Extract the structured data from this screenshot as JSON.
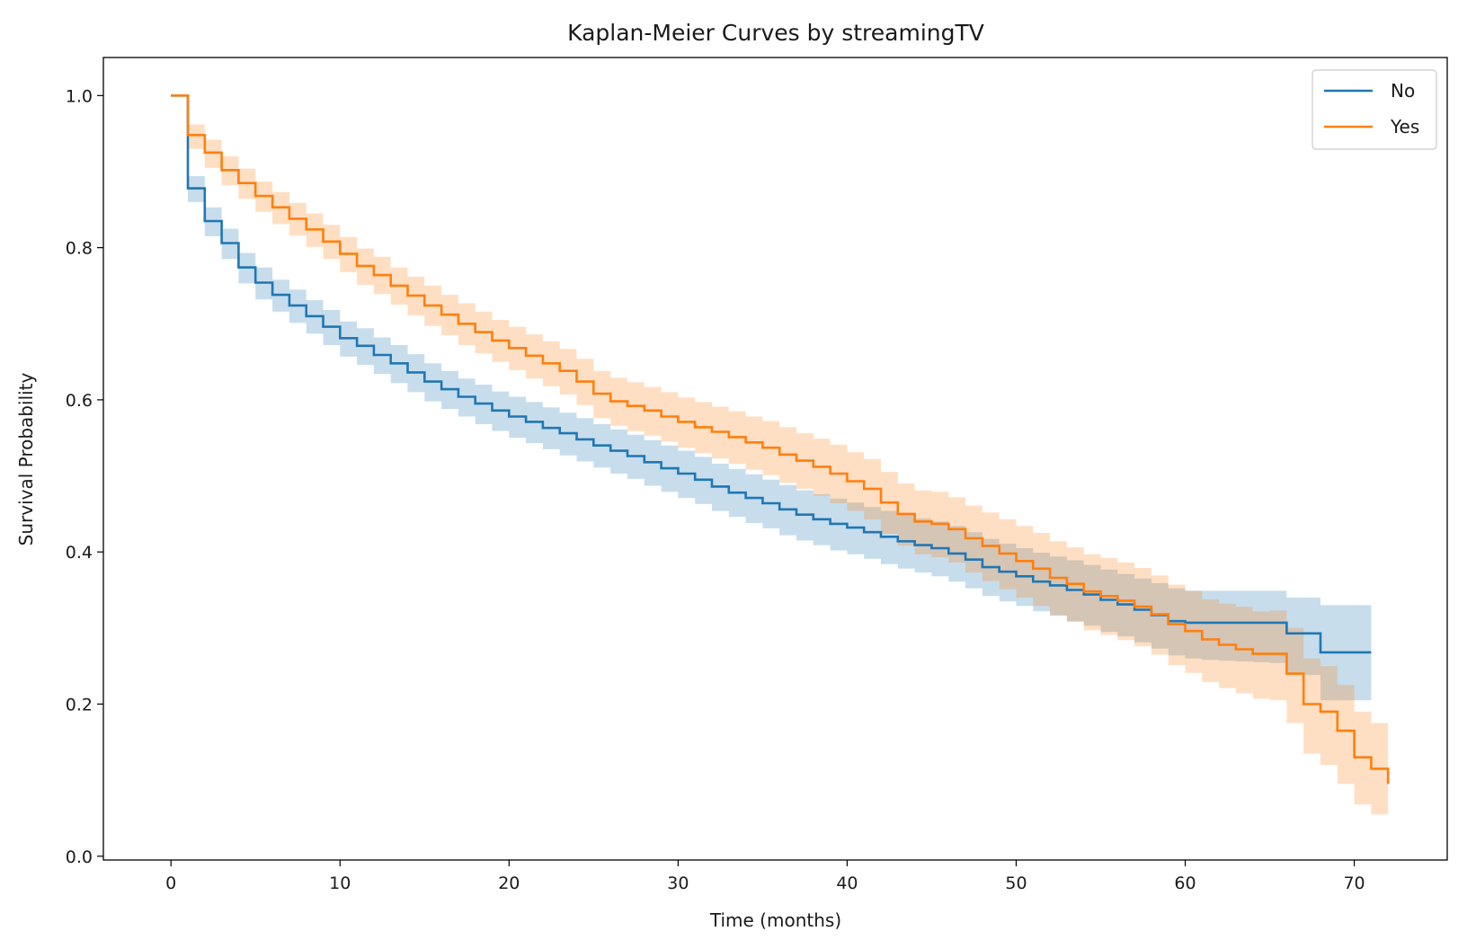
{
  "chart_data": {
    "type": "line",
    "title": "Kaplan-Meier Curves by streamingTV",
    "xlabel": "Time (months)",
    "ylabel": "Survival Probability",
    "xlim": [
      -4,
      75.5
    ],
    "ylim": [
      -0.005,
      1.05
    ],
    "xticks": [
      0,
      10,
      20,
      30,
      40,
      50,
      60,
      70
    ],
    "xtick_labels": [
      "0",
      "10",
      "20",
      "30",
      "40",
      "50",
      "60",
      "70"
    ],
    "yticks": [
      0.0,
      0.2,
      0.4,
      0.6,
      0.8,
      1.0
    ],
    "ytick_labels": [
      "0.0",
      "0.2",
      "0.4",
      "0.6",
      "0.8",
      "1.0"
    ],
    "grid": false,
    "legend_position": "top-right",
    "series": [
      {
        "name": "No",
        "color": "#1f77b4",
        "band_color": "#1f77b4",
        "step": "post",
        "x": [
          0,
          1,
          2,
          3,
          4,
          5,
          6,
          7,
          8,
          9,
          10,
          11,
          12,
          13,
          14,
          15,
          16,
          17,
          18,
          19,
          20,
          21,
          22,
          23,
          24,
          25,
          26,
          27,
          28,
          29,
          30,
          31,
          32,
          33,
          34,
          35,
          36,
          37,
          38,
          39,
          40,
          41,
          42,
          43,
          44,
          45,
          46,
          47,
          48,
          49,
          50,
          51,
          52,
          53,
          54,
          55,
          56,
          57,
          58,
          59,
          60,
          61,
          62,
          63,
          64,
          65,
          66,
          67,
          68,
          69,
          70,
          71
        ],
        "y": [
          1.0,
          0.878,
          0.835,
          0.806,
          0.774,
          0.754,
          0.738,
          0.724,
          0.71,
          0.696,
          0.681,
          0.671,
          0.659,
          0.648,
          0.636,
          0.624,
          0.614,
          0.604,
          0.595,
          0.586,
          0.578,
          0.571,
          0.563,
          0.556,
          0.548,
          0.54,
          0.533,
          0.526,
          0.518,
          0.51,
          0.503,
          0.495,
          0.486,
          0.478,
          0.471,
          0.464,
          0.456,
          0.449,
          0.443,
          0.437,
          0.432,
          0.426,
          0.42,
          0.414,
          0.409,
          0.405,
          0.398,
          0.39,
          0.38,
          0.374,
          0.368,
          0.361,
          0.356,
          0.35,
          0.344,
          0.337,
          0.331,
          0.324,
          0.317,
          0.309,
          0.307,
          0.307,
          0.307,
          0.307,
          0.307,
          0.307,
          0.293,
          0.293,
          0.268,
          0.268,
          0.268,
          0.268
        ],
        "lower": [
          1.0,
          0.86,
          0.815,
          0.785,
          0.753,
          0.732,
          0.716,
          0.701,
          0.687,
          0.672,
          0.657,
          0.646,
          0.634,
          0.622,
          0.61,
          0.598,
          0.588,
          0.578,
          0.568,
          0.559,
          0.55,
          0.543,
          0.535,
          0.527,
          0.519,
          0.511,
          0.503,
          0.496,
          0.487,
          0.479,
          0.471,
          0.463,
          0.454,
          0.446,
          0.438,
          0.431,
          0.422,
          0.415,
          0.409,
          0.402,
          0.397,
          0.391,
          0.384,
          0.378,
          0.373,
          0.368,
          0.361,
          0.352,
          0.342,
          0.335,
          0.329,
          0.322,
          0.316,
          0.309,
          0.303,
          0.295,
          0.289,
          0.281,
          0.273,
          0.264,
          0.26,
          0.258,
          0.257,
          0.256,
          0.255,
          0.254,
          0.24,
          0.238,
          0.205,
          0.205,
          0.205,
          0.205
        ],
        "upper": [
          1.0,
          0.894,
          0.853,
          0.825,
          0.793,
          0.774,
          0.758,
          0.745,
          0.731,
          0.718,
          0.703,
          0.694,
          0.682,
          0.672,
          0.66,
          0.648,
          0.638,
          0.628,
          0.62,
          0.611,
          0.604,
          0.597,
          0.59,
          0.583,
          0.576,
          0.568,
          0.561,
          0.554,
          0.547,
          0.54,
          0.533,
          0.525,
          0.516,
          0.509,
          0.502,
          0.495,
          0.488,
          0.481,
          0.476,
          0.47,
          0.465,
          0.459,
          0.454,
          0.449,
          0.444,
          0.44,
          0.434,
          0.426,
          0.417,
          0.411,
          0.405,
          0.399,
          0.394,
          0.389,
          0.383,
          0.377,
          0.371,
          0.365,
          0.359,
          0.352,
          0.349,
          0.349,
          0.349,
          0.349,
          0.349,
          0.349,
          0.34,
          0.34,
          0.33,
          0.33,
          0.33,
          0.33
        ]
      },
      {
        "name": "Yes",
        "color": "#ff7f0e",
        "band_color": "#ff7f0e",
        "step": "post",
        "x": [
          0,
          1,
          2,
          3,
          4,
          5,
          6,
          7,
          8,
          9,
          10,
          11,
          12,
          13,
          14,
          15,
          16,
          17,
          18,
          19,
          20,
          21,
          22,
          23,
          24,
          25,
          26,
          27,
          28,
          29,
          30,
          31,
          32,
          33,
          34,
          35,
          36,
          37,
          38,
          39,
          40,
          41,
          42,
          43,
          44,
          45,
          46,
          47,
          48,
          49,
          50,
          51,
          52,
          53,
          54,
          55,
          56,
          57,
          58,
          59,
          60,
          61,
          62,
          63,
          64,
          65,
          66,
          67,
          68,
          69,
          70,
          71,
          72
        ],
        "y": [
          1.0,
          0.948,
          0.925,
          0.902,
          0.885,
          0.868,
          0.853,
          0.838,
          0.824,
          0.808,
          0.792,
          0.776,
          0.764,
          0.75,
          0.737,
          0.724,
          0.712,
          0.7,
          0.689,
          0.678,
          0.668,
          0.658,
          0.648,
          0.638,
          0.624,
          0.608,
          0.598,
          0.592,
          0.586,
          0.578,
          0.571,
          0.564,
          0.558,
          0.551,
          0.544,
          0.537,
          0.528,
          0.52,
          0.512,
          0.503,
          0.493,
          0.483,
          0.465,
          0.45,
          0.44,
          0.437,
          0.43,
          0.418,
          0.408,
          0.398,
          0.388,
          0.378,
          0.366,
          0.358,
          0.348,
          0.342,
          0.336,
          0.328,
          0.318,
          0.305,
          0.296,
          0.285,
          0.278,
          0.272,
          0.266,
          0.266,
          0.24,
          0.2,
          0.19,
          0.165,
          0.13,
          0.115,
          0.095
        ],
        "lower": [
          1.0,
          0.93,
          0.905,
          0.882,
          0.864,
          0.847,
          0.831,
          0.816,
          0.801,
          0.785,
          0.768,
          0.751,
          0.739,
          0.725,
          0.711,
          0.697,
          0.685,
          0.672,
          0.661,
          0.65,
          0.639,
          0.628,
          0.618,
          0.607,
          0.593,
          0.576,
          0.566,
          0.559,
          0.553,
          0.545,
          0.537,
          0.53,
          0.523,
          0.516,
          0.508,
          0.501,
          0.491,
          0.483,
          0.474,
          0.464,
          0.454,
          0.443,
          0.424,
          0.408,
          0.397,
          0.393,
          0.386,
          0.373,
          0.362,
          0.351,
          0.34,
          0.329,
          0.317,
          0.308,
          0.297,
          0.291,
          0.284,
          0.276,
          0.265,
          0.251,
          0.241,
          0.229,
          0.221,
          0.214,
          0.207,
          0.205,
          0.175,
          0.135,
          0.12,
          0.095,
          0.068,
          0.055,
          0.045
        ],
        "upper": [
          1.0,
          0.962,
          0.942,
          0.92,
          0.904,
          0.887,
          0.873,
          0.859,
          0.845,
          0.83,
          0.814,
          0.799,
          0.788,
          0.774,
          0.762,
          0.75,
          0.738,
          0.727,
          0.716,
          0.705,
          0.696,
          0.686,
          0.677,
          0.667,
          0.654,
          0.638,
          0.629,
          0.623,
          0.617,
          0.61,
          0.603,
          0.597,
          0.591,
          0.585,
          0.578,
          0.572,
          0.564,
          0.556,
          0.549,
          0.541,
          0.531,
          0.522,
          0.505,
          0.49,
          0.481,
          0.479,
          0.472,
          0.461,
          0.452,
          0.443,
          0.434,
          0.425,
          0.414,
          0.406,
          0.397,
          0.392,
          0.386,
          0.379,
          0.369,
          0.357,
          0.349,
          0.338,
          0.332,
          0.328,
          0.322,
          0.323,
          0.3,
          0.26,
          0.25,
          0.225,
          0.19,
          0.175,
          0.16
        ]
      }
    ]
  }
}
